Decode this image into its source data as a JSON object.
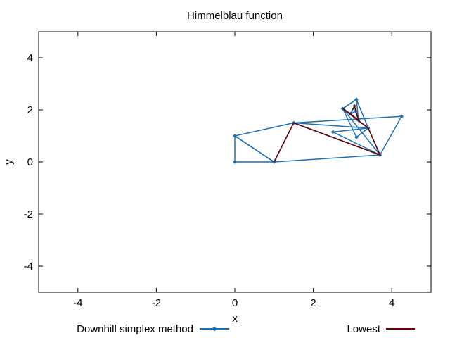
{
  "chart_data": {
    "type": "line",
    "title": "Himmelblau function",
    "xlabel": "x",
    "ylabel": "y",
    "xlim": [
      -5,
      5
    ],
    "ylim": [
      -5,
      5
    ],
    "x_ticks": [
      -4,
      -2,
      0,
      2,
      4
    ],
    "y_ticks": [
      -4,
      -2,
      0,
      2,
      4
    ],
    "grid": false,
    "legend_position": "bottom",
    "series": [
      {
        "name": "Downhill simplex method",
        "color": "#1f6fb0",
        "marker": "diamond",
        "triangles": [
          [
            [
              0,
              0
            ],
            [
              1,
              0
            ],
            [
              0,
              1
            ]
          ],
          [
            [
              1,
              0
            ],
            [
              0,
              1
            ],
            [
              1.5,
              1.5
            ]
          ],
          [
            [
              1,
              0
            ],
            [
              1.5,
              1.5
            ],
            [
              3.7,
              0.27
            ]
          ],
          [
            [
              1.5,
              1.5
            ],
            [
              3.7,
              0.27
            ],
            [
              4.25,
              1.75
            ]
          ],
          [
            [
              1.5,
              1.5
            ],
            [
              3.7,
              0.27
            ],
            [
              3.4,
              1.3
            ]
          ],
          [
            [
              3.7,
              0.27
            ],
            [
              3.4,
              1.3
            ],
            [
              2.5,
              1.15
            ]
          ],
          [
            [
              3.7,
              0.27
            ],
            [
              3.4,
              1.3
            ],
            [
              2.75,
              2.05
            ]
          ],
          [
            [
              3.4,
              1.3
            ],
            [
              2.75,
              2.05
            ],
            [
              3.1,
              0.95
            ]
          ],
          [
            [
              3.4,
              1.3
            ],
            [
              2.75,
              2.05
            ],
            [
              3.1,
              2.4
            ]
          ],
          [
            [
              2.75,
              2.05
            ],
            [
              3.1,
              2.4
            ],
            [
              3.15,
              1.6
            ]
          ],
          [
            [
              2.75,
              2.05
            ],
            [
              3.15,
              1.6
            ],
            [
              2.95,
              1.85
            ]
          ],
          [
            [
              2.95,
              1.85
            ],
            [
              3.15,
              1.6
            ],
            [
              3.05,
              2.15
            ]
          ],
          [
            [
              2.95,
              1.85
            ],
            [
              3.05,
              2.15
            ],
            [
              3.08,
              1.95
            ]
          ]
        ]
      },
      {
        "name": "Lowest",
        "color": "#6b0000",
        "points": [
          [
            1,
            0
          ],
          [
            1.5,
            1.5
          ],
          [
            3.7,
            0.27
          ],
          [
            3.4,
            1.3
          ],
          [
            2.75,
            2.05
          ],
          [
            2.95,
            1.85
          ],
          [
            3.15,
            1.6
          ],
          [
            3.05,
            2.15
          ],
          [
            3.0,
            2.0
          ]
        ]
      }
    ]
  }
}
